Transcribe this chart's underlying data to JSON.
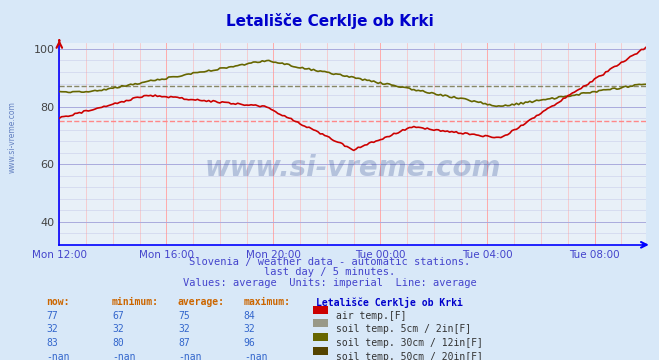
{
  "title": "Letališče Cerklje ob Krki",
  "subtitle1": "Slovenia / weather data - automatic stations.",
  "subtitle2": "last day / 5 minutes.",
  "subtitle3": "Values: average  Units: imperial  Line: average",
  "bg_color": "#d8e8f8",
  "plot_bg_color": "#e8f0f8",
  "x_label_color": "#4444cc",
  "grid_vertical_color": "#ffaaaa",
  "grid_horizontal_color": "#aaaadd",
  "axis_color": "#0000ff",
  "title_color": "#0000cc",
  "tick_labels": [
    "Mon 12:00",
    "Mon 16:00",
    "Mon 20:00",
    "Tue 00:00",
    "Tue 04:00",
    "Tue 08:00"
  ],
  "tick_positions": [
    0,
    48,
    96,
    144,
    192,
    240
  ],
  "total_points": 264,
  "ylim": [
    32,
    102
  ],
  "yticks": [
    40,
    60,
    80,
    100
  ],
  "table_headers": [
    "now:",
    "minimum:",
    "average:",
    "maximum:",
    "Letališče Cerklje ob Krki"
  ],
  "table_rows": [
    {
      "now": "77",
      "min": "67",
      "avg": "75",
      "max": "84",
      "label": "air temp.[F]",
      "color": "#cc0000"
    },
    {
      "now": "32",
      "min": "32",
      "avg": "32",
      "max": "32",
      "label": "soil temp. 5cm / 2in[F]",
      "color": "#999988"
    },
    {
      "now": "83",
      "min": "80",
      "avg": "87",
      "max": "96",
      "label": "soil temp. 30cm / 12in[F]",
      "color": "#666600"
    },
    {
      "now": "-nan",
      "min": "-nan",
      "avg": "-nan",
      "max": "-nan",
      "label": "soil temp. 50cm / 20in[F]",
      "color": "#554400"
    }
  ],
  "air_temp_avg": 75,
  "soil30_avg": 87,
  "air_temp_color": "#cc0000",
  "soil5_color": "#aaaaaa",
  "soil30_color": "#666600",
  "soil50_color": "#554400",
  "avg_line_air_color": "#ff8888",
  "avg_line_soil30_color": "#888866"
}
